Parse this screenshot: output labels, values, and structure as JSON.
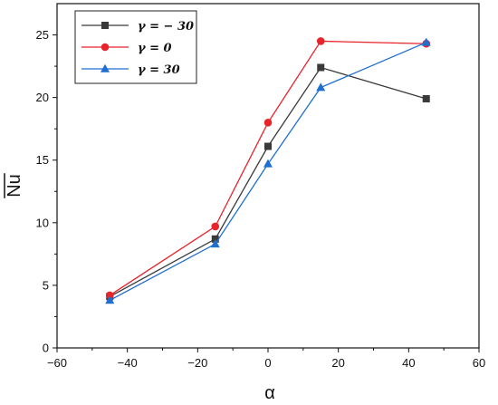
{
  "chart_data": {
    "type": "line",
    "xlabel": "α",
    "ylabel": "Nu",
    "ylabel_overline": true,
    "xlim": [
      -60,
      60
    ],
    "ylim": [
      0,
      27.5
    ],
    "xticks": [
      -60,
      -40,
      -20,
      0,
      20,
      40,
      60
    ],
    "yticks": [
      0,
      5,
      10,
      15,
      20,
      25
    ],
    "xtick_labels": [
      "−60",
      "−40",
      "−20",
      "0",
      "20",
      "40",
      "60"
    ],
    "ytick_labels": [
      "0",
      "5",
      "10",
      "15",
      "20",
      "25"
    ],
    "grid": false,
    "legend_position": "top-left",
    "x": [
      -45,
      -15,
      0,
      15,
      45
    ],
    "series": [
      {
        "name": "γ = − 30",
        "marker": "square",
        "color": "#3a3a3a",
        "values": [
          4.1,
          8.7,
          16.1,
          22.4,
          19.9
        ]
      },
      {
        "name": "γ  =  0",
        "marker": "circle",
        "color": "#e8232a",
        "values": [
          4.2,
          9.7,
          18.0,
          24.5,
          24.3
        ]
      },
      {
        "name": "γ  = 30",
        "marker": "triangle",
        "color": "#1f6fd1",
        "values": [
          3.8,
          8.3,
          14.7,
          20.8,
          24.4
        ]
      }
    ]
  }
}
